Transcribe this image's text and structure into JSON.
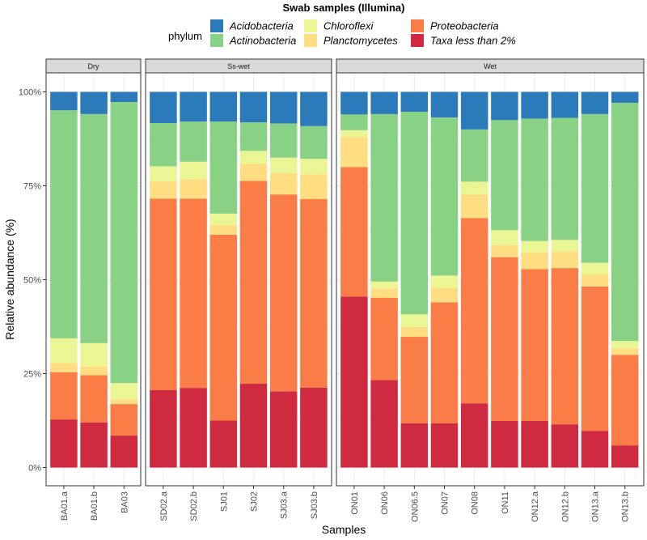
{
  "chart_data": {
    "type": "bar",
    "stacked": true,
    "title": "Swab samples (Illumina)",
    "xlabel": "Samples",
    "ylabel": "Relative abundance (%)",
    "ylim": [
      0,
      100
    ],
    "yticks": [
      "0%",
      "25%",
      "50%",
      "75%",
      "100%"
    ],
    "ytick_values": [
      0,
      25,
      50,
      75,
      100
    ],
    "legend": {
      "title": "phylum",
      "position": "top",
      "entries": [
        {
          "name": "Acidobacteria",
          "color": "#2b7bba"
        },
        {
          "name": "Actinobacteria",
          "color": "#89d185"
        },
        {
          "name": "Chloroflexi",
          "color": "#eaf594"
        },
        {
          "name": "Planctomycetes",
          "color": "#fede80"
        },
        {
          "name": "Proteobacteria",
          "color": "#fa7d48"
        },
        {
          "name": "Taxa less than 2%",
          "color": "#d02a41"
        }
      ]
    },
    "stack_order_bottom_to_top": [
      "Taxa less than 2%",
      "Proteobacteria",
      "Planctomycetes",
      "Chloroflexi",
      "Actinobacteria",
      "Acidobacteria"
    ],
    "panels": [
      {
        "label": "Dry",
        "samples": [
          {
            "name": "BA01.a",
            "values": {
              "Taxa less than 2%": 12.8,
              "Proteobacteria": 12.6,
              "Planctomycetes": 2.4,
              "Chloroflexi": 6.6,
              "Actinobacteria": 60.7,
              "Acidobacteria": 4.9
            }
          },
          {
            "name": "BA01.b",
            "values": {
              "Taxa less than 2%": 12.0,
              "Proteobacteria": 12.6,
              "Planctomycetes": 2.4,
              "Chloroflexi": 6.1,
              "Actinobacteria": 61.0,
              "Acidobacteria": 5.9
            }
          },
          {
            "name": "BA03",
            "values": {
              "Taxa less than 2%": 8.5,
              "Proteobacteria": 8.4,
              "Planctomycetes": 1.3,
              "Chloroflexi": 4.3,
              "Actinobacteria": 74.8,
              "Acidobacteria": 2.7
            }
          }
        ]
      },
      {
        "label": "Ss-wet",
        "samples": [
          {
            "name": "SD02.a",
            "values": {
              "Taxa less than 2%": 20.6,
              "Proteobacteria": 51.0,
              "Planctomycetes": 4.6,
              "Chloroflexi": 4.0,
              "Actinobacteria": 11.5,
              "Acidobacteria": 8.3
            }
          },
          {
            "name": "SD02.b",
            "values": {
              "Taxa less than 2%": 21.2,
              "Proteobacteria": 50.4,
              "Planctomycetes": 5.1,
              "Chloroflexi": 4.7,
              "Actinobacteria": 10.7,
              "Acidobacteria": 7.9
            }
          },
          {
            "name": "SJ01",
            "values": {
              "Taxa less than 2%": 12.5,
              "Proteobacteria": 49.5,
              "Planctomycetes": 2.6,
              "Chloroflexi": 3.0,
              "Actinobacteria": 24.5,
              "Acidobacteria": 7.9
            }
          },
          {
            "name": "SJ02",
            "values": {
              "Taxa less than 2%": 22.3,
              "Proteobacteria": 54.0,
              "Planctomycetes": 4.6,
              "Chloroflexi": 3.4,
              "Actinobacteria": 7.6,
              "Acidobacteria": 8.1
            }
          },
          {
            "name": "SJ03.a",
            "values": {
              "Taxa less than 2%": 20.3,
              "Proteobacteria": 52.4,
              "Planctomycetes": 5.7,
              "Chloroflexi": 4.1,
              "Actinobacteria": 9.1,
              "Acidobacteria": 8.4
            }
          },
          {
            "name": "SJ03.b",
            "values": {
              "Taxa less than 2%": 21.3,
              "Proteobacteria": 50.2,
              "Planctomycetes": 6.5,
              "Chloroflexi": 4.2,
              "Actinobacteria": 8.7,
              "Acidobacteria": 9.1
            }
          }
        ]
      },
      {
        "label": "Wet",
        "samples": [
          {
            "name": "ON01",
            "values": {
              "Taxa less than 2%": 45.5,
              "Proteobacteria": 34.5,
              "Planctomycetes": 8.0,
              "Chloroflexi": 1.8,
              "Actinobacteria": 4.2,
              "Acidobacteria": 6.0
            }
          },
          {
            "name": "ON06",
            "values": {
              "Taxa less than 2%": 23.3,
              "Proteobacteria": 21.9,
              "Planctomycetes": 2.5,
              "Chloroflexi": 1.8,
              "Actinobacteria": 44.6,
              "Acidobacteria": 5.9
            }
          },
          {
            "name": "ON06.5",
            "values": {
              "Taxa less than 2%": 11.8,
              "Proteobacteria": 23.0,
              "Planctomycetes": 2.6,
              "Chloroflexi": 3.4,
              "Actinobacteria": 53.9,
              "Acidobacteria": 5.3
            }
          },
          {
            "name": "ON07",
            "values": {
              "Taxa less than 2%": 11.8,
              "Proteobacteria": 32.2,
              "Planctomycetes": 3.9,
              "Chloroflexi": 3.2,
              "Actinobacteria": 42.1,
              "Acidobacteria": 6.8
            }
          },
          {
            "name": "ON08",
            "values": {
              "Taxa less than 2%": 17.1,
              "Proteobacteria": 49.3,
              "Planctomycetes": 6.3,
              "Chloroflexi": 3.4,
              "Actinobacteria": 13.9,
              "Acidobacteria": 10.0
            }
          },
          {
            "name": "ON11",
            "values": {
              "Taxa less than 2%": 12.4,
              "Proteobacteria": 43.6,
              "Planctomycetes": 3.3,
              "Chloroflexi": 3.9,
              "Actinobacteria": 29.3,
              "Acidobacteria": 7.5
            }
          },
          {
            "name": "ON12.a",
            "values": {
              "Taxa less than 2%": 12.4,
              "Proteobacteria": 40.4,
              "Planctomycetes": 4.5,
              "Chloroflexi": 3.0,
              "Actinobacteria": 32.6,
              "Acidobacteria": 7.1
            }
          },
          {
            "name": "ON12.b",
            "values": {
              "Taxa less than 2%": 11.5,
              "Proteobacteria": 41.6,
              "Planctomycetes": 4.5,
              "Chloroflexi": 3.0,
              "Actinobacteria": 32.5,
              "Acidobacteria": 6.9
            }
          },
          {
            "name": "ON13.a",
            "values": {
              "Taxa less than 2%": 9.7,
              "Proteobacteria": 38.5,
              "Planctomycetes": 3.2,
              "Chloroflexi": 3.1,
              "Actinobacteria": 39.6,
              "Acidobacteria": 5.9
            }
          },
          {
            "name": "ON13.b",
            "values": {
              "Taxa less than 2%": 5.9,
              "Proteobacteria": 24.1,
              "Planctomycetes": 1.7,
              "Chloroflexi": 2.0,
              "Actinobacteria": 63.4,
              "Acidobacteria": 2.9
            }
          }
        ]
      }
    ]
  }
}
